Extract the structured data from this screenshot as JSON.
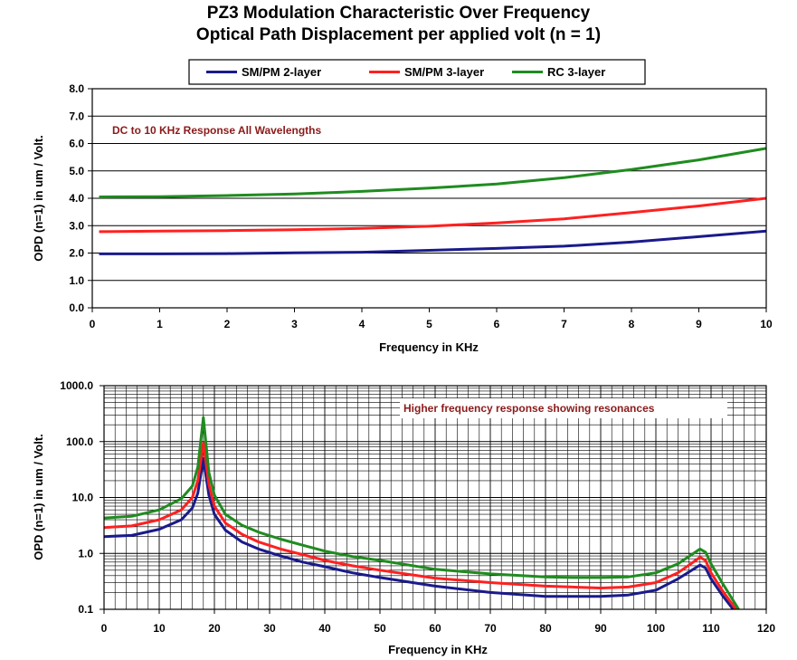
{
  "titles": {
    "line1": "PZ3 Modulation Characteristic Over Frequency",
    "line2": "Optical Path Displacement per applied volt (n = 1)"
  },
  "legend": [
    {
      "name": "SM/PM 2-layer",
      "color": "#1a1a8c"
    },
    {
      "name": "SM/PM 3-layer",
      "color": "#ff2020"
    },
    {
      "name": "RC 3-layer",
      "color": "#1f8c1f"
    }
  ],
  "chart_data": [
    {
      "type": "line",
      "xlabel": "Frequency in KHz",
      "ylabel": "OPD (n=1) in um / Volt.",
      "xlim": [
        0,
        10
      ],
      "ylim": [
        0,
        8
      ],
      "xticks": [
        "0",
        "1",
        "2",
        "3",
        "4",
        "5",
        "6",
        "7",
        "8",
        "9",
        "10"
      ],
      "yticks": [
        "0.0",
        "1.0",
        "2.0",
        "3.0",
        "4.0",
        "5.0",
        "6.0",
        "7.0",
        "8.0"
      ],
      "annotation": "DC to 10 KHz Response All Wavelengths",
      "grid": "horizontal",
      "series": [
        {
          "name": "SM/PM 2-layer",
          "color": "#1a1a8c",
          "x": [
            0.1,
            1,
            2,
            3,
            4,
            5,
            6,
            7,
            8,
            9,
            10
          ],
          "y": [
            1.97,
            1.97,
            1.98,
            2.01,
            2.03,
            2.1,
            2.17,
            2.25,
            2.4,
            2.6,
            2.8
          ]
        },
        {
          "name": "SM/PM 3-layer",
          "color": "#ff2020",
          "x": [
            0.1,
            1,
            2,
            3,
            4,
            5,
            6,
            7,
            8,
            9,
            10
          ],
          "y": [
            2.78,
            2.8,
            2.82,
            2.85,
            2.9,
            2.98,
            3.1,
            3.25,
            3.48,
            3.72,
            4.0
          ]
        },
        {
          "name": "RC 3-layer",
          "color": "#1f8c1f",
          "x": [
            0.1,
            1,
            2,
            3,
            4,
            5,
            6,
            7,
            8,
            9,
            10
          ],
          "y": [
            4.05,
            4.06,
            4.1,
            4.16,
            4.25,
            4.37,
            4.52,
            4.75,
            5.05,
            5.4,
            5.82
          ]
        }
      ]
    },
    {
      "type": "line",
      "xlabel": "Frequency in KHz",
      "ylabel": "OPD (n=1) in um / Volt.",
      "xlim": [
        0,
        120
      ],
      "ylim": [
        0.1,
        1000
      ],
      "yscale": "log",
      "xticks": [
        "0",
        "10",
        "20",
        "30",
        "40",
        "50",
        "60",
        "70",
        "80",
        "90",
        "100",
        "110",
        "120"
      ],
      "yticks": [
        "0.1",
        "1.0",
        "10.0",
        "100.0",
        "1000.0"
      ],
      "annotation": "Higher frequency response showing resonances",
      "grid": "both",
      "series": [
        {
          "name": "SM/PM 2-layer",
          "color": "#1a1a8c",
          "x": [
            0,
            5,
            10,
            14,
            16,
            17,
            18,
            19,
            20,
            22,
            25,
            28,
            32,
            36,
            40,
            45,
            50,
            60,
            70,
            80,
            85,
            90,
            95,
            100,
            104,
            108,
            109,
            110,
            112,
            114
          ],
          "y": [
            2.0,
            2.1,
            2.7,
            4.0,
            6.5,
            12,
            50,
            11,
            5.0,
            2.6,
            1.6,
            1.2,
            0.9,
            0.7,
            0.58,
            0.45,
            0.37,
            0.26,
            0.2,
            0.17,
            0.17,
            0.17,
            0.18,
            0.22,
            0.35,
            0.62,
            0.55,
            0.35,
            0.18,
            0.1
          ]
        },
        {
          "name": "SM/PM 3-layer",
          "color": "#ff2020",
          "x": [
            0,
            5,
            10,
            14,
            16,
            17,
            18,
            19,
            20,
            22,
            25,
            28,
            32,
            36,
            40,
            45,
            50,
            60,
            70,
            80,
            85,
            90,
            95,
            100,
            104,
            108,
            109,
            110,
            112,
            114.5
          ],
          "y": [
            2.9,
            3.1,
            4.0,
            6.0,
            10,
            20,
            95,
            17,
            7.0,
            3.5,
            2.2,
            1.6,
            1.2,
            0.95,
            0.75,
            0.6,
            0.5,
            0.36,
            0.3,
            0.26,
            0.25,
            0.24,
            0.25,
            0.3,
            0.45,
            0.85,
            0.75,
            0.45,
            0.22,
            0.1
          ]
        },
        {
          "name": "RC 3-layer",
          "color": "#1f8c1f",
          "x": [
            0,
            5,
            10,
            14,
            16,
            17,
            18,
            19,
            20,
            22,
            25,
            28,
            32,
            36,
            40,
            45,
            50,
            60,
            70,
            80,
            85,
            90,
            95,
            100,
            104,
            108,
            109,
            110,
            112,
            115
          ],
          "y": [
            4.3,
            4.6,
            6.0,
            9.5,
            16,
            35,
            270,
            28,
            11,
            5.0,
            3.2,
            2.4,
            1.8,
            1.4,
            1.1,
            0.88,
            0.75,
            0.52,
            0.43,
            0.38,
            0.37,
            0.37,
            0.38,
            0.45,
            0.65,
            1.2,
            1.05,
            0.65,
            0.3,
            0.1
          ]
        }
      ]
    }
  ]
}
